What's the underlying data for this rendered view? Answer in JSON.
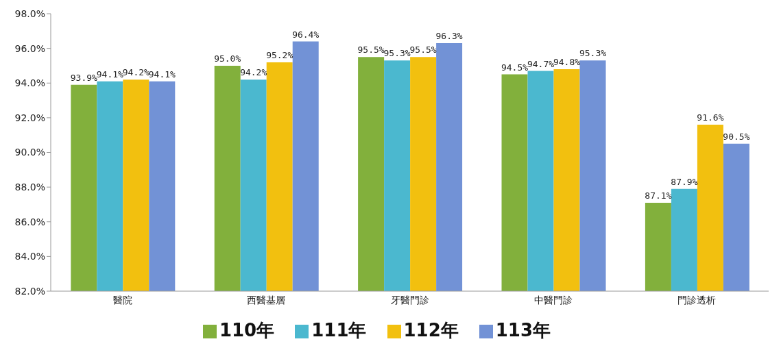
{
  "chart_data": {
    "type": "bar",
    "categories": [
      "醫院",
      "西醫基層",
      "牙醫門診",
      "中醫門診",
      "門診透析"
    ],
    "series": [
      {
        "name": "110年",
        "color": "#82b03c",
        "values": [
          93.9,
          95.0,
          95.5,
          94.5,
          87.1
        ],
        "value_labels": [
          "93.9%",
          "95.0%",
          "95.5%",
          "94.5%",
          "87.1%"
        ]
      },
      {
        "name": "111年",
        "color": "#4bb8cf",
        "values": [
          94.1,
          94.2,
          95.3,
          94.7,
          87.9
        ],
        "value_labels": [
          "94.1%",
          "94.2%",
          "95.3%",
          "94.7%",
          "87.9%"
        ]
      },
      {
        "name": "112年",
        "color": "#f2c00f",
        "values": [
          94.2,
          95.2,
          95.5,
          94.8,
          91.6
        ],
        "value_labels": [
          "94.2%",
          "95.2%",
          "95.5%",
          "94.8%",
          "91.6%"
        ]
      },
      {
        "name": "113年",
        "color": "#7292d6",
        "values": [
          94.1,
          96.4,
          96.3,
          95.3,
          90.5
        ],
        "value_labels": [
          "94.1%",
          "96.4%",
          "96.3%",
          "95.3%",
          "90.5%"
        ]
      }
    ],
    "ylim": [
      82,
      98
    ],
    "yticks": [
      {
        "value": 82,
        "label": "82.0%"
      },
      {
        "value": 84,
        "label": "84.0%"
      },
      {
        "value": 86,
        "label": "86.0%"
      },
      {
        "value": 88,
        "label": "88.0%"
      },
      {
        "value": 90,
        "label": "90.0%"
      },
      {
        "value": 92,
        "label": "92.0%"
      },
      {
        "value": 94,
        "label": "94.0%"
      },
      {
        "value": 96,
        "label": "96.0%"
      },
      {
        "value": 98,
        "label": "98.0%"
      }
    ],
    "legend": "bottom",
    "grid": false
  }
}
